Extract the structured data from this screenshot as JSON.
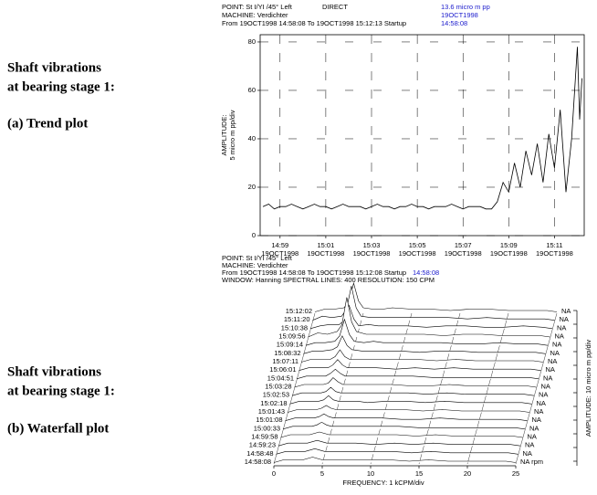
{
  "captions": {
    "a_line1": "Shaft vibrations",
    "a_line2": "at bearing stage 1:",
    "a_label": "(a)  Trend plot",
    "b_line1": "Shaft vibrations",
    "b_line2": "at bearing stage 1:",
    "b_label": "(b)  Waterfall plot"
  },
  "chart_data": [
    {
      "type": "line",
      "header": {
        "point": "POINT: St I/YI  /45° Left",
        "mode": "DIRECT",
        "amplitude": "13.6 micro m pp",
        "date": "19OCT1998",
        "machine": "MACHINE: Verdichter",
        "range": "From 19OCT1998 14:58:08 To 19OCT1998 15:12:13 Startup",
        "time": "14:58:08"
      },
      "ylabel": [
        "AMPLITUDE:",
        "5 micro m pp/div"
      ],
      "x": [
        898.25,
        898.5,
        898.75,
        899,
        899.25,
        899.5,
        899.75,
        900,
        900.25,
        900.5,
        900.75,
        901,
        901.25,
        901.5,
        901.75,
        902,
        902.25,
        902.5,
        902.75,
        903,
        903.25,
        903.5,
        903.75,
        904,
        904.25,
        904.5,
        904.75,
        905,
        905.25,
        905.5,
        905.75,
        906,
        906.25,
        906.5,
        906.75,
        907,
        907.25,
        907.5,
        907.75,
        908,
        908.25,
        908.5,
        908.75,
        909,
        909.25,
        909.5,
        909.75,
        910,
        910.25,
        910.5,
        910.75,
        911,
        911.25,
        911.5,
        911.75,
        912,
        912.1,
        912.2
      ],
      "series": [
        {
          "color": "#000000",
          "values": [
            12,
            13,
            11,
            12,
            12,
            13,
            12,
            11,
            12,
            13,
            12,
            12,
            11,
            12,
            13,
            12,
            12,
            12,
            11,
            12,
            13,
            12,
            12,
            11,
            12,
            12,
            13,
            12,
            12,
            11,
            12,
            12,
            12,
            13,
            12,
            11,
            12,
            12,
            12,
            11,
            11,
            14,
            22,
            18,
            30,
            20,
            35,
            25,
            38,
            22,
            42,
            28,
            52,
            18,
            40,
            78,
            48,
            65
          ]
        }
      ],
      "xlim": [
        898.13,
        912.3
      ],
      "ylim": [
        0,
        83
      ],
      "xticks": [
        {
          "value": 899,
          "label": "14:59"
        },
        {
          "value": 901,
          "label": "15:01"
        },
        {
          "value": 903,
          "label": "15:03"
        },
        {
          "value": 905,
          "label": "15:05"
        },
        {
          "value": 907,
          "label": "15:07"
        },
        {
          "value": 909,
          "label": "15:09"
        },
        {
          "value": 911,
          "label": "15:11"
        }
      ],
      "x_tick_sublabel": "19OCT1998",
      "yticks": [
        0,
        20,
        40,
        60,
        80
      ],
      "grid": true
    },
    {
      "type": "waterfall",
      "header": {
        "point": "POINT: St I/YI  /45° Left",
        "machine": "MACHINE: Verdichter",
        "range": "From 19OCT1998 14:58:08 To 19OCT1998 15:12:08 Startup",
        "time": "14:58:08",
        "window": "WINDOW: Hanning  SPECTRAL LINES: 400  RESOLUTION: 150 CPM"
      },
      "xlabel": "FREQUENCY: 1 kCPM/div",
      "ylabel": "AMPLITUDE: 10 micro m pp/div",
      "x": [
        0,
        1,
        2,
        3,
        3.5,
        4,
        4.5,
        5,
        6,
        7,
        8,
        10,
        12,
        14,
        16,
        18,
        20,
        22,
        24,
        25
      ],
      "xlim": [
        0,
        25
      ],
      "xticks": [
        0,
        5,
        10,
        15,
        20,
        25
      ],
      "speed_labels": [
        "NA",
        "NA",
        "NA",
        "NA",
        "NA",
        "NA",
        "NA",
        "NA",
        "NA",
        "NA",
        "NA",
        "NA",
        "NA",
        "NA",
        "NA",
        "NA",
        "NA",
        "NA",
        "NA rpm"
      ],
      "series": [
        {
          "name": "15:12:02",
          "values": [
            1,
            3,
            3,
            4,
            8,
            22,
            9,
            4,
            3,
            3,
            4,
            3,
            3,
            2,
            3,
            3,
            2,
            2,
            2,
            1
          ]
        },
        {
          "name": "15:11:20",
          "values": [
            1,
            4,
            3,
            4,
            9,
            26,
            10,
            4,
            3,
            3,
            3,
            3,
            3,
            3,
            2,
            3,
            2,
            2,
            2,
            1
          ]
        },
        {
          "name": "15:10:38",
          "values": [
            1,
            3,
            4,
            4,
            7,
            18,
            8,
            3,
            4,
            3,
            3,
            3,
            2,
            3,
            3,
            2,
            2,
            3,
            2,
            1
          ]
        },
        {
          "name": "15:09:56",
          "values": [
            1,
            4,
            3,
            5,
            10,
            30,
            12,
            5,
            3,
            3,
            3,
            3,
            3,
            2,
            3,
            3,
            2,
            2,
            2,
            1
          ]
        },
        {
          "name": "15:09:14",
          "values": [
            1,
            3,
            3,
            4,
            8,
            20,
            9,
            4,
            3,
            4,
            3,
            3,
            3,
            3,
            2,
            2,
            3,
            2,
            2,
            1
          ]
        },
        {
          "name": "15:08:32",
          "values": [
            1,
            3,
            3,
            4,
            6,
            14,
            7,
            4,
            3,
            3,
            3,
            3,
            2,
            3,
            3,
            2,
            2,
            2,
            2,
            1
          ]
        },
        {
          "name": "15:07:11",
          "values": [
            1,
            3,
            3,
            3,
            5,
            10,
            5,
            3,
            3,
            3,
            3,
            3,
            3,
            2,
            3,
            2,
            2,
            2,
            2,
            1
          ]
        },
        {
          "name": "15:06:01",
          "values": [
            1,
            3,
            3,
            3,
            5,
            9,
            5,
            3,
            3,
            3,
            3,
            2,
            3,
            2,
            3,
            2,
            2,
            2,
            2,
            1
          ]
        },
        {
          "name": "15:04:51",
          "values": [
            1,
            3,
            3,
            3,
            5,
            8,
            5,
            3,
            3,
            3,
            3,
            3,
            3,
            2,
            2,
            2,
            2,
            2,
            2,
            1
          ]
        },
        {
          "name": "15:03:28",
          "values": [
            1,
            3,
            3,
            3,
            4,
            8,
            5,
            3,
            3,
            3,
            3,
            3,
            2,
            2,
            3,
            2,
            2,
            2,
            2,
            1
          ]
        },
        {
          "name": "15:02:53",
          "values": [
            1,
            3,
            3,
            3,
            4,
            7,
            4,
            3,
            3,
            3,
            3,
            3,
            3,
            2,
            3,
            2,
            2,
            2,
            2,
            1
          ]
        },
        {
          "name": "15:02:18",
          "values": [
            1,
            3,
            3,
            3,
            4,
            7,
            4,
            3,
            3,
            3,
            2,
            3,
            3,
            2,
            3,
            2,
            2,
            2,
            2,
            1
          ]
        },
        {
          "name": "15:01:43",
          "values": [
            1,
            3,
            3,
            3,
            4,
            6,
            4,
            3,
            3,
            3,
            3,
            3,
            3,
            2,
            3,
            2,
            2,
            2,
            2,
            1
          ]
        },
        {
          "name": "15:01:08",
          "values": [
            1,
            3,
            3,
            3,
            4,
            6,
            4,
            3,
            3,
            3,
            3,
            3,
            2,
            2,
            3,
            2,
            2,
            2,
            2,
            1
          ]
        },
        {
          "name": "15:00:33",
          "values": [
            1,
            3,
            3,
            3,
            4,
            6,
            4,
            3,
            3,
            3,
            3,
            3,
            3,
            2,
            2,
            2,
            2,
            2,
            2,
            1
          ]
        },
        {
          "name": "14:59:58",
          "values": [
            1,
            3,
            3,
            3,
            4,
            5,
            4,
            3,
            3,
            3,
            3,
            3,
            3,
            2,
            3,
            2,
            2,
            2,
            2,
            1
          ]
        },
        {
          "name": "14:59:23",
          "values": [
            1,
            3,
            3,
            3,
            4,
            5,
            4,
            3,
            3,
            3,
            3,
            2,
            3,
            2,
            3,
            2,
            2,
            2,
            2,
            1
          ]
        },
        {
          "name": "14:58:48",
          "values": [
            1,
            3,
            3,
            3,
            4,
            5,
            4,
            3,
            3,
            3,
            3,
            3,
            3,
            2,
            3,
            2,
            2,
            2,
            2,
            1
          ]
        },
        {
          "name": "14:58:08",
          "values": [
            1,
            3,
            3,
            3,
            4,
            5,
            4,
            3,
            3,
            3,
            3,
            3,
            3,
            2,
            3,
            2,
            2,
            2,
            2,
            1
          ]
        }
      ]
    }
  ]
}
